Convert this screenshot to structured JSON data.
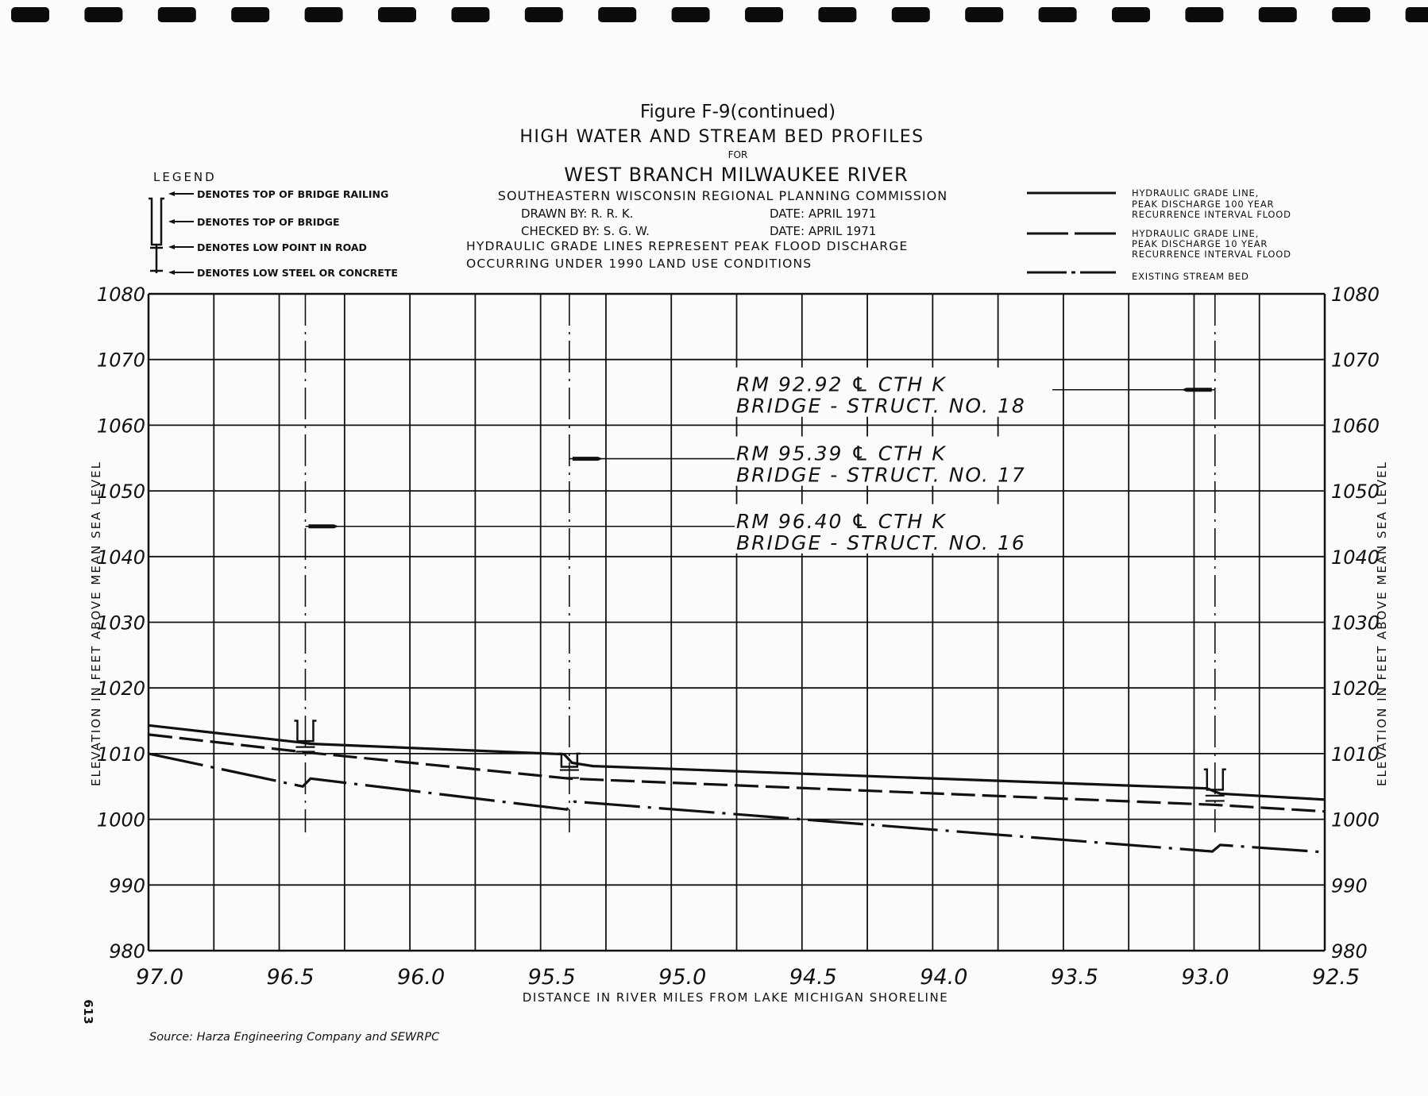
{
  "header": {
    "figure": "Figure F-9(continued)",
    "title": "HIGH WATER AND STREAM BED PROFILES",
    "for": "FOR",
    "river": "WEST BRANCH MILWAUKEE RIVER",
    "agency": "SOUTHEASTERN WISCONSIN REGIONAL PLANNING COMMISSION",
    "drawn_by": "DRAWN BY:  R. R. K.",
    "drawn_date": "DATE: APRIL  1971",
    "checked_by": "CHECKED BY: S. G. W.",
    "checked_date": "DATE: APRIL  1971",
    "note1": "HYDRAULIC GRADE LINES REPRESENT PEAK FLOOD DISCHARGE",
    "note2": "OCCURRING UNDER 1990 LAND USE CONDITIONS"
  },
  "symbol_legend": {
    "title": "LEGEND",
    "items": [
      "DENOTES  TOP OF BRIDGE RAILING",
      "DENOTES  TOP OF BRIDGE",
      "DENOTES  LOW POINT IN ROAD",
      "DENOTES  LOW STEEL OR CONCRETE"
    ]
  },
  "source": "Source:  Harza Engineering Company and SEWRPC",
  "page_number": "613",
  "chart_data": {
    "type": "line",
    "title": "HIGH WATER AND STREAM BED PROFILES",
    "xlabel": "DISTANCE IN RIVER MILES FROM LAKE MICHIGAN SHORELINE",
    "ylabel": "ELEVATION IN FEET ABOVE MEAN SEA LEVEL",
    "xlim": [
      97.0,
      92.5
    ],
    "ylim": [
      980,
      1080
    ],
    "x_reversed": true,
    "grid": true,
    "x_grid_step": 0.25,
    "y_grid_step": 10,
    "x_ticks": [
      "97.0",
      "96.5",
      "96.0",
      "95.5",
      "95.0",
      "94.5",
      "94.0",
      "93.5",
      "93.0",
      "92.5"
    ],
    "x_tick_values": [
      97.0,
      96.5,
      96.0,
      95.5,
      95.0,
      94.5,
      94.0,
      93.5,
      93.0,
      92.5
    ],
    "y_ticks": [
      "1080",
      "1070",
      "1060",
      "1050",
      "1040",
      "1030",
      "1020",
      "1010",
      "1000",
      "990",
      "980"
    ],
    "y_tick_values": [
      1080,
      1070,
      1060,
      1050,
      1040,
      1030,
      1020,
      1010,
      1000,
      990,
      980
    ],
    "legend_placement": "top-right",
    "series": [
      {
        "name": "HYDRAULIC GRADE LINE, PEAK DISCHARGE 100 YEAR RECURRENCE INTERVAL FLOOD",
        "legend_lines": [
          "HYDRAULIC GRADE LINE,",
          "PEAK DISCHARGE 100 YEAR",
          "RECURRENCE INTERVAL FLOOD"
        ],
        "style": "solid",
        "x": [
          97.0,
          96.42,
          96.38,
          95.41,
          95.38,
          95.3,
          92.95,
          92.9,
          92.5
        ],
        "y": [
          1014.3,
          1011.7,
          1011.5,
          1009.9,
          1008.6,
          1008.1,
          1004.7,
          1003.9,
          1003.0
        ]
      },
      {
        "name": "HYDRAULIC GRADE LINE, PEAK DISCHARGE 10 YEAR RECURRENCE INTERVAL FLOOD",
        "legend_lines": [
          "HYDRAULIC GRADE LINE,",
          "PEAK DISCHARGE 10 YEAR",
          "RECURRENCE INTERVAL FLOOD"
        ],
        "style": "dashed",
        "x": [
          97.0,
          96.4,
          95.39,
          92.92,
          92.5
        ],
        "y": [
          1012.9,
          1010.2,
          1006.2,
          1002.2,
          1001.2
        ]
      },
      {
        "name": "EXISTING STREAM BED",
        "legend_lines": [
          "EXISTING STREAM BED"
        ],
        "style": "dash-dot",
        "x": [
          97.0,
          96.41,
          96.38,
          95.4,
          95.37,
          92.93,
          92.9,
          92.5
        ],
        "y": [
          1010.0,
          1005.0,
          1006.2,
          1001.5,
          1002.7,
          995.1,
          996.1,
          995.0
        ]
      }
    ],
    "bridges": [
      {
        "river_mile": 96.4,
        "label1": "RM 96.40 ℄ CTH K",
        "label2": "BRIDGE - STRUCT. NO. 16",
        "railing": 1015.0,
        "top": 1011.9,
        "low_road": 1011.0,
        "low_steel": 1010.3,
        "flag_elev": 1044.6
      },
      {
        "river_mile": 95.39,
        "label1": "RM 95.39 ℄ CTH K",
        "label2": "BRIDGE - STRUCT. NO. 17",
        "railing": 1010.0,
        "top": 1008.0,
        "low_road": 1007.5,
        "low_steel": 1006.3,
        "flag_elev": 1054.9
      },
      {
        "river_mile": 92.92,
        "label1": "RM 92.92 ℄ CTH K",
        "label2": "BRIDGE - STRUCT. NO. 18",
        "railing": 1007.6,
        "top": 1004.5,
        "low_road": 1003.6,
        "low_steel": 1002.8,
        "flag_elev": 1065.4
      }
    ]
  }
}
